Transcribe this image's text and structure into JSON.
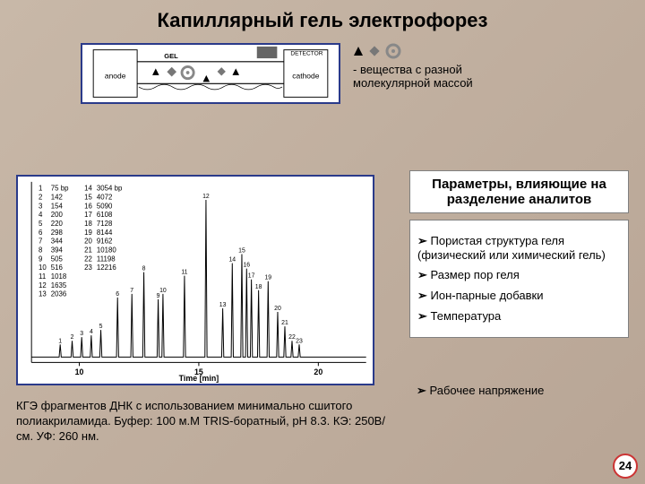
{
  "title": "Капиллярный гель электрофорез",
  "schematic": {
    "anode_label": "anode",
    "cathode_label": "cathode",
    "detector_label": "DETECTOR",
    "gel_label": "GEL",
    "border_color": "#2a3a8a",
    "bg": "#ffffff"
  },
  "legend": {
    "text": "- вещества с разной\nмолекулярной массой",
    "marker_colors": [
      "#000000",
      "#777777",
      "#888888"
    ]
  },
  "params_header": "Параметры, влияющие на разделение аналитов",
  "bullets": [
    "Пористая структура геля (физический или химический гель)",
    "Размер пор геля",
    "Ион-парные добавки",
    "Температура"
  ],
  "bullet_extra": "Рабочее напряжение",
  "caption": "КГЭ фрагментов ДНК с использованием минимально сшитого полиакриламида. Буфер: 100 м.М TRIS-боратный, pH 8.3. КЭ: 250В/см. УФ: 260 нм.",
  "page_number": "24",
  "chromatogram": {
    "type": "line-peaks",
    "xlim": [
      8,
      22
    ],
    "ylim": [
      0,
      100
    ],
    "xticks": [
      10,
      15,
      20
    ],
    "xtick_labels": [
      "10",
      "15",
      "20"
    ],
    "xlabel": "Time [min]",
    "line_color": "#000000",
    "bg": "#ffffff",
    "table": {
      "rows": [
        [
          "1",
          "75 bp",
          "14",
          "3054 bp"
        ],
        [
          "2",
          "142",
          "15",
          "4072"
        ],
        [
          "3",
          "154",
          "16",
          "5090"
        ],
        [
          "4",
          "200",
          "17",
          "6108"
        ],
        [
          "5",
          "220",
          "18",
          "7128"
        ],
        [
          "6",
          "298",
          "19",
          "8144"
        ],
        [
          "7",
          "344",
          "20",
          "9162"
        ],
        [
          "8",
          "394",
          "21",
          "10180"
        ],
        [
          "9",
          "505",
          "22",
          "11198"
        ],
        [
          "10",
          "516",
          "23",
          "12216"
        ],
        [
          "11",
          "1018",
          "",
          ""
        ],
        [
          "12",
          "1635",
          "",
          ""
        ],
        [
          "13",
          "2036",
          "",
          ""
        ]
      ],
      "fontsize": 8
    },
    "peaks": [
      {
        "n": "1",
        "t": 9.2,
        "h": 10
      },
      {
        "n": "2",
        "t": 9.7,
        "h": 12
      },
      {
        "n": "3",
        "t": 10.1,
        "h": 14
      },
      {
        "n": "4",
        "t": 10.5,
        "h": 15
      },
      {
        "n": "5",
        "t": 10.9,
        "h": 18
      },
      {
        "n": "6",
        "t": 11.6,
        "h": 36
      },
      {
        "n": "7",
        "t": 12.2,
        "h": 38
      },
      {
        "n": "8",
        "t": 12.7,
        "h": 50
      },
      {
        "n": "9",
        "t": 13.3,
        "h": 35
      },
      {
        "n": "10",
        "t": 13.5,
        "h": 38
      },
      {
        "n": "11",
        "t": 14.4,
        "h": 48
      },
      {
        "n": "12",
        "t": 15.3,
        "h": 90
      },
      {
        "n": "13",
        "t": 16.0,
        "h": 30
      },
      {
        "n": "14",
        "t": 16.4,
        "h": 55
      },
      {
        "n": "15",
        "t": 16.8,
        "h": 60
      },
      {
        "n": "16",
        "t": 17.0,
        "h": 52
      },
      {
        "n": "17",
        "t": 17.2,
        "h": 46
      },
      {
        "n": "18",
        "t": 17.5,
        "h": 40
      },
      {
        "n": "19",
        "t": 17.9,
        "h": 45
      },
      {
        "n": "20",
        "t": 18.3,
        "h": 28
      },
      {
        "n": "21",
        "t": 18.6,
        "h": 20
      },
      {
        "n": "22",
        "t": 18.9,
        "h": 12
      },
      {
        "n": "23",
        "t": 19.2,
        "h": 10
      }
    ]
  },
  "colors": {
    "page_bg_a": "#c8b8a8",
    "page_bg_b": "#b8a595",
    "frame": "#2a3a8a",
    "box_border": "#808080",
    "text": "#000000",
    "circle": "#cc3333"
  }
}
